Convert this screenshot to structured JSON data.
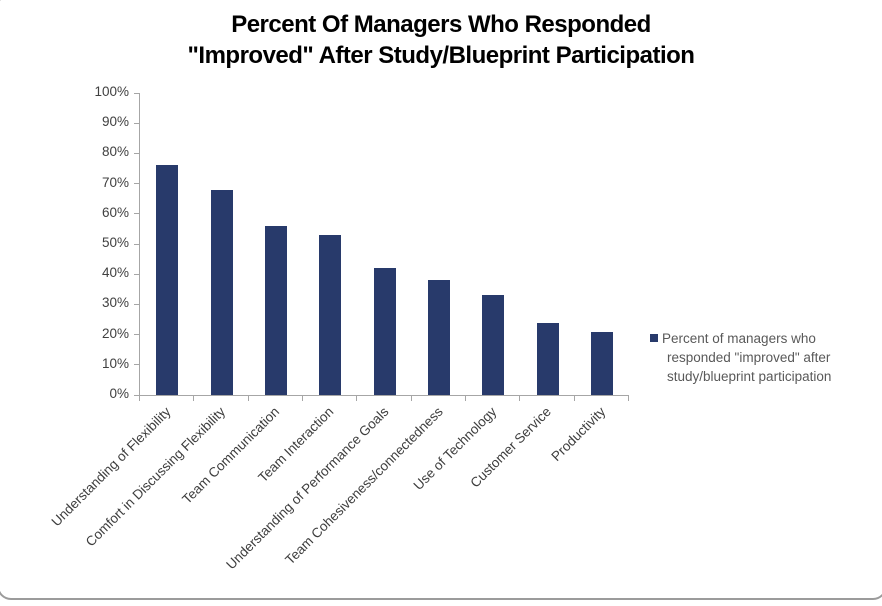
{
  "title": {
    "line1": "Percent Of Managers Who Responded",
    "line2": "\"Improved\" After Study/Blueprint Participation"
  },
  "legend": {
    "lines": [
      "Percent of managers who",
      "responded \"improved\" after",
      "study/blueprint participation"
    ]
  },
  "colors": {
    "bar": "#283a6b",
    "axis": "#a6a6a6",
    "tick_label": "#404040",
    "legend_text": "#595959",
    "title": "#000000",
    "frame_border": "#9b9b9b"
  },
  "chart_data": {
    "type": "bar",
    "title": "Percent Of Managers Who Responded \"Improved\" After Study/Blueprint Participation",
    "categories": [
      "Understanding of Flexibility",
      "Comfort in Discussing Flexibility",
      "Team Communication",
      "Team Interaction",
      "Understanding of Performance Goals",
      "Team Cohesiveness/connectedness",
      "Use of Technology",
      "Customer Service",
      "Productivity"
    ],
    "series": [
      {
        "name": "Percent of managers who responded \"improved\" after study/blueprint participation",
        "values": [
          76,
          68,
          56,
          53,
          42,
          38,
          33,
          24,
          21
        ]
      }
    ],
    "xlabel": "",
    "ylabel": "",
    "ylim": [
      0,
      100
    ],
    "ytick_step": 10,
    "ytick_labels": [
      "0%",
      "10%",
      "20%",
      "30%",
      "40%",
      "50%",
      "60%",
      "70%",
      "80%",
      "90%",
      "100%"
    ],
    "x_label_rotation_deg": 45,
    "grid": false,
    "legend_position": "right",
    "bar_color": "#283a6b"
  }
}
